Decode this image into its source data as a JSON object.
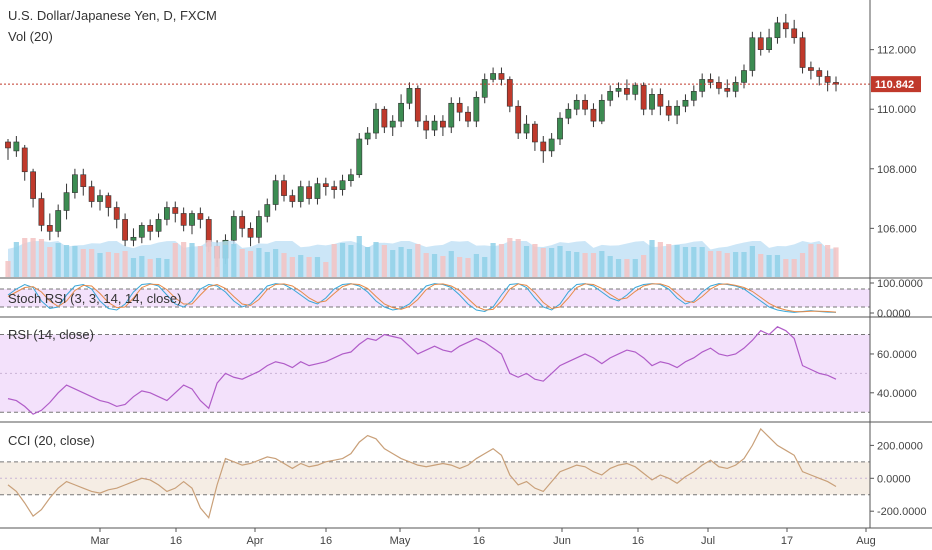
{
  "chart_data": {
    "type": "candlestick",
    "title": "U.S. Dollar/Japanese Yen, D, FXCM",
    "last_price": "110.842",
    "price_axis": {
      "ticks": [
        "112.000",
        "110.000",
        "108.000",
        "106.000"
      ],
      "values": [
        112,
        110,
        108,
        106
      ],
      "range": [
        104.4,
        113.6
      ]
    },
    "time_axis": [
      "Mar",
      "16",
      "Apr",
      "16",
      "May",
      "16",
      "Jun",
      "16",
      "Jul",
      "17",
      "Aug"
    ],
    "candles_start_price": 108.8,
    "candles": [
      [
        108.9,
        108.7,
        109.0,
        108.3
      ],
      [
        108.6,
        108.9,
        109.1,
        108.4
      ],
      [
        108.7,
        107.9,
        108.8,
        107.6
      ],
      [
        107.9,
        107.0,
        108.0,
        106.7
      ],
      [
        107.0,
        106.1,
        107.2,
        105.9
      ],
      [
        106.1,
        105.9,
        106.5,
        105.6
      ],
      [
        105.9,
        106.6,
        106.8,
        105.7
      ],
      [
        106.6,
        107.2,
        107.5,
        106.3
      ],
      [
        107.2,
        107.8,
        108.0,
        107.0
      ],
      [
        107.8,
        107.4,
        108.0,
        107.1
      ],
      [
        107.4,
        106.9,
        107.6,
        106.7
      ],
      [
        106.9,
        107.1,
        107.3,
        106.6
      ],
      [
        107.1,
        106.7,
        107.2,
        106.4
      ],
      [
        106.7,
        106.3,
        106.9,
        106.0
      ],
      [
        106.3,
        105.6,
        106.5,
        105.4
      ],
      [
        105.6,
        105.7,
        106.0,
        105.4
      ],
      [
        105.7,
        106.1,
        106.2,
        105.5
      ],
      [
        106.1,
        105.9,
        106.3,
        105.6
      ],
      [
        105.9,
        106.3,
        106.5,
        105.7
      ],
      [
        106.3,
        106.7,
        106.9,
        106.1
      ],
      [
        106.7,
        106.5,
        106.9,
        106.2
      ],
      [
        106.5,
        106.1,
        106.7,
        105.9
      ],
      [
        106.1,
        106.5,
        106.6,
        105.8
      ],
      [
        106.5,
        106.3,
        106.7,
        106.0
      ],
      [
        106.3,
        105.4,
        106.4,
        105.2
      ],
      [
        105.4,
        105.0,
        105.6,
        104.7
      ],
      [
        105.0,
        105.6,
        105.8,
        104.8
      ],
      [
        105.6,
        106.4,
        106.6,
        105.4
      ],
      [
        106.4,
        106.0,
        106.6,
        105.7
      ],
      [
        106.0,
        105.7,
        106.2,
        105.4
      ],
      [
        105.7,
        106.4,
        106.6,
        105.5
      ],
      [
        106.4,
        106.8,
        107.0,
        106.2
      ],
      [
        106.8,
        107.6,
        107.8,
        106.6
      ],
      [
        107.6,
        107.1,
        107.8,
        106.9
      ],
      [
        107.1,
        106.9,
        107.3,
        106.7
      ],
      [
        106.9,
        107.4,
        107.6,
        106.7
      ],
      [
        107.4,
        107.0,
        107.6,
        106.8
      ],
      [
        107.0,
        107.5,
        107.7,
        106.8
      ],
      [
        107.5,
        107.4,
        107.7,
        107.1
      ],
      [
        107.4,
        107.3,
        107.6,
        107.0
      ],
      [
        107.3,
        107.6,
        107.8,
        107.1
      ],
      [
        107.6,
        107.8,
        108.0,
        107.4
      ],
      [
        107.8,
        109.0,
        109.2,
        107.7
      ],
      [
        109.0,
        109.2,
        109.4,
        108.8
      ],
      [
        109.2,
        110.0,
        110.2,
        109.0
      ],
      [
        110.0,
        109.4,
        110.1,
        109.2
      ],
      [
        109.4,
        109.6,
        109.8,
        109.1
      ],
      [
        109.6,
        110.2,
        110.5,
        109.4
      ],
      [
        110.2,
        110.7,
        110.9,
        110.0
      ],
      [
        110.7,
        109.6,
        110.8,
        109.4
      ],
      [
        109.6,
        109.3,
        109.8,
        109.0
      ],
      [
        109.3,
        109.6,
        109.8,
        109.1
      ],
      [
        109.6,
        109.4,
        109.8,
        109.1
      ],
      [
        109.4,
        110.2,
        110.4,
        109.2
      ],
      [
        110.2,
        109.9,
        110.4,
        109.6
      ],
      [
        109.9,
        109.6,
        110.1,
        109.4
      ],
      [
        109.6,
        110.4,
        110.6,
        109.4
      ],
      [
        110.4,
        111.0,
        111.2,
        110.2
      ],
      [
        111.0,
        111.2,
        111.4,
        110.9
      ],
      [
        111.2,
        111.0,
        111.4,
        110.8
      ],
      [
        111.0,
        110.1,
        111.1,
        109.9
      ],
      [
        110.1,
        109.2,
        110.3,
        109.0
      ],
      [
        109.2,
        109.5,
        109.8,
        109.0
      ],
      [
        109.5,
        108.9,
        109.6,
        108.6
      ],
      [
        108.9,
        108.6,
        109.1,
        108.2
      ],
      [
        108.6,
        109.0,
        109.2,
        108.4
      ],
      [
        109.0,
        109.7,
        109.9,
        108.8
      ],
      [
        109.7,
        110.0,
        110.2,
        109.5
      ],
      [
        110.0,
        110.3,
        110.5,
        109.8
      ],
      [
        110.3,
        110.0,
        110.5,
        109.8
      ],
      [
        110.0,
        109.6,
        110.2,
        109.4
      ],
      [
        109.6,
        110.3,
        110.5,
        109.5
      ],
      [
        110.3,
        110.6,
        110.8,
        110.1
      ],
      [
        110.6,
        110.7,
        110.9,
        110.4
      ],
      [
        110.7,
        110.5,
        111.0,
        110.3
      ],
      [
        110.5,
        110.8,
        110.9,
        110.3
      ],
      [
        110.8,
        110.0,
        110.9,
        109.8
      ],
      [
        110.0,
        110.5,
        110.7,
        109.8
      ],
      [
        110.5,
        110.1,
        110.7,
        109.8
      ],
      [
        110.1,
        109.8,
        110.3,
        109.6
      ],
      [
        109.8,
        110.1,
        110.3,
        109.5
      ],
      [
        110.1,
        110.3,
        110.5,
        109.9
      ],
      [
        110.3,
        110.6,
        110.8,
        110.1
      ],
      [
        110.6,
        111.0,
        111.2,
        110.4
      ],
      [
        111.0,
        110.9,
        111.2,
        110.7
      ],
      [
        110.9,
        110.7,
        111.1,
        110.5
      ],
      [
        110.7,
        110.6,
        111.0,
        110.4
      ],
      [
        110.6,
        110.9,
        111.1,
        110.4
      ],
      [
        110.9,
        111.3,
        111.5,
        110.7
      ],
      [
        111.3,
        112.4,
        112.6,
        111.1
      ],
      [
        112.4,
        112.0,
        112.6,
        111.8
      ],
      [
        112.0,
        112.4,
        112.7,
        111.9
      ],
      [
        112.4,
        112.9,
        113.1,
        112.2
      ],
      [
        112.9,
        112.7,
        113.2,
        112.4
      ],
      [
        112.7,
        112.4,
        113.0,
        112.2
      ],
      [
        112.4,
        111.4,
        112.6,
        111.2
      ],
      [
        111.4,
        111.3,
        111.6,
        111.0
      ],
      [
        111.3,
        111.1,
        111.4,
        110.8
      ],
      [
        111.1,
        110.9,
        111.3,
        110.6
      ],
      [
        110.9,
        110.84,
        111.1,
        110.6
      ]
    ],
    "volume_label": "Vol (20)",
    "indicators": [
      {
        "name": "Stoch RSI (3, 3, 14, 14, close)",
        "ticks": [
          "100.0000",
          "0.0000"
        ],
        "tick_values": [
          100,
          0
        ],
        "range": [
          -10,
          110
        ],
        "bands": [
          80,
          20
        ],
        "k": [
          60,
          80,
          95,
          85,
          40,
          15,
          20,
          60,
          90,
          95,
          80,
          40,
          15,
          10,
          30,
          70,
          95,
          98,
          90,
          60,
          30,
          20,
          40,
          80,
          95,
          90,
          70,
          40,
          20,
          30,
          60,
          90,
          98,
          95,
          80,
          60,
          40,
          30,
          50,
          80,
          95,
          98,
          90,
          70,
          40,
          20,
          10,
          15,
          30,
          60,
          90,
          98,
          95,
          85,
          60,
          30,
          10,
          5,
          20,
          60,
          95,
          98,
          85,
          50,
          20,
          10,
          30,
          70,
          95,
          98,
          90,
          70,
          50,
          40,
          60,
          85,
          95,
          98,
          95,
          80,
          50,
          30,
          40,
          70,
          90,
          98,
          95,
          90,
          80,
          60,
          40,
          20,
          10,
          5,
          2,
          5,
          8,
          5,
          3,
          2
        ],
        "d": [
          55,
          70,
          85,
          88,
          70,
          40,
          22,
          40,
          75,
          92,
          90,
          65,
          35,
          18,
          20,
          50,
          85,
          96,
          95,
          78,
          50,
          30,
          30,
          60,
          88,
          95,
          82,
          55,
          30,
          25,
          45,
          78,
          95,
          97,
          90,
          72,
          50,
          35,
          40,
          65,
          88,
          97,
          95,
          82,
          55,
          30,
          18,
          12,
          22,
          45,
          78,
          95,
          97,
          90,
          75,
          48,
          22,
          10,
          12,
          40,
          80,
          97,
          92,
          68,
          35,
          15,
          20,
          50,
          85,
          97,
          95,
          82,
          62,
          45,
          50,
          72,
          90,
          97,
          97,
          88,
          65,
          40,
          35,
          55,
          80,
          95,
          97,
          92,
          85,
          72,
          52,
          32,
          18,
          10,
          5,
          4,
          6,
          6,
          5,
          3
        ]
      },
      {
        "name": "RSI (14, close)",
        "ticks": [
          "60.0000",
          "40.0000"
        ],
        "tick_values": [
          60,
          40
        ],
        "range": [
          26,
          78
        ],
        "bands": [
          70,
          30
        ],
        "mid": 50,
        "values": [
          37,
          36,
          33,
          29,
          31,
          35,
          40,
          44,
          42,
          40,
          38,
          36,
          35,
          33,
          34,
          38,
          41,
          40,
          38,
          36,
          40,
          44,
          42,
          36,
          32,
          45,
          50,
          48,
          47,
          49,
          51,
          54,
          56,
          55,
          53,
          56,
          54,
          55,
          56,
          58,
          60,
          61,
          65,
          68,
          67,
          70,
          69,
          68,
          64,
          60,
          62,
          64,
          62,
          61,
          64,
          66,
          68,
          66,
          63,
          60,
          50,
          48,
          50,
          47,
          46,
          50,
          54,
          56,
          58,
          60,
          58,
          55,
          58,
          60,
          62,
          61,
          58,
          54,
          56,
          55,
          53,
          56,
          58,
          61,
          63,
          60,
          59,
          60,
          63,
          67,
          72,
          70,
          74,
          72,
          68,
          54,
          52,
          50,
          49,
          47
        ]
      },
      {
        "name": "CCI (20, close)",
        "ticks": [
          "200.0000",
          "0.0000",
          "-200.0000"
        ],
        "tick_values": [
          200,
          0,
          -200
        ],
        "range": [
          -290,
          330
        ],
        "bands": [
          100,
          -100
        ],
        "mid": 0,
        "values": [
          -40,
          -80,
          -150,
          -230,
          -190,
          -120,
          -60,
          -20,
          -40,
          -60,
          -80,
          -90,
          -70,
          -60,
          -40,
          -20,
          0,
          -10,
          -40,
          -80,
          -60,
          -20,
          -60,
          -180,
          -240,
          -40,
          120,
          100,
          80,
          90,
          110,
          130,
          120,
          90,
          60,
          90,
          70,
          80,
          100,
          110,
          120,
          150,
          220,
          260,
          240,
          180,
          150,
          120,
          100,
          80,
          70,
          80,
          90,
          80,
          60,
          80,
          120,
          150,
          180,
          140,
          20,
          -40,
          -20,
          -60,
          -80,
          -20,
          40,
          60,
          80,
          70,
          40,
          20,
          60,
          80,
          90,
          70,
          30,
          -10,
          20,
          0,
          -30,
          10,
          40,
          80,
          110,
          70,
          60,
          80,
          120,
          200,
          300,
          250,
          200,
          170,
          140,
          40,
          20,
          0,
          -20,
          -50
        ]
      }
    ]
  }
}
